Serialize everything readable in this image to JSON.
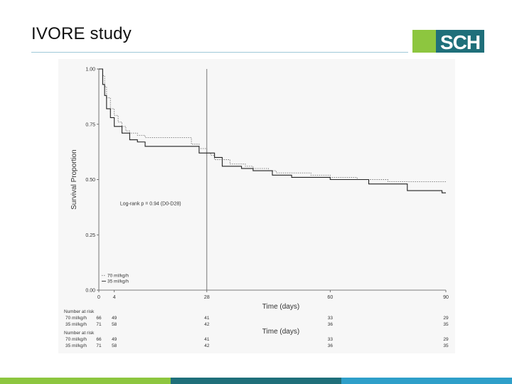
{
  "slide": {
    "title": "IVORE study",
    "logo_text": "SCH",
    "colors": {
      "green": "#8dc63f",
      "teal": "#1f6f7a",
      "blue": "#2e9fc9"
    }
  },
  "chart_data": {
    "type": "line",
    "subtype": "kaplan-meier",
    "xlabel": "Time (days)",
    "ylabel": "Survival Proportion",
    "xlim": [
      0,
      90
    ],
    "ylim": [
      0,
      1
    ],
    "x_ticks": [
      "0",
      "4",
      "28",
      "60",
      "90"
    ],
    "y_ticks": [
      "0.00",
      "0.25",
      "0.50",
      "0.75",
      "1.00"
    ],
    "reference_line_x": 28,
    "annotation": "Log-rank p = 0.94 (D0-D28)",
    "legend": [
      "70 ml/kg/h",
      "35 ml/kg/h"
    ],
    "series": [
      {
        "name": "70 ml/kg/h",
        "style": "dotted",
        "x": [
          0,
          1,
          1.5,
          2,
          3,
          4,
          5,
          6,
          7,
          8,
          10,
          12,
          17,
          24,
          26,
          28,
          29,
          30,
          34,
          38,
          40,
          44,
          46,
          50,
          55,
          60,
          63,
          67,
          70,
          75,
          80,
          90
        ],
        "y": [
          1.0,
          0.97,
          0.92,
          0.87,
          0.82,
          0.79,
          0.76,
          0.74,
          0.72,
          0.71,
          0.7,
          0.69,
          0.69,
          0.66,
          0.64,
          0.62,
          0.61,
          0.59,
          0.57,
          0.56,
          0.55,
          0.54,
          0.53,
          0.53,
          0.52,
          0.51,
          0.51,
          0.5,
          0.5,
          0.49,
          0.49,
          0.49
        ]
      },
      {
        "name": "35 ml/kg/h",
        "style": "solid",
        "x": [
          0,
          1,
          1.5,
          2,
          3,
          4,
          6,
          8,
          10,
          12,
          20,
          26,
          28,
          30,
          32,
          37,
          40,
          45,
          50,
          55,
          60,
          63,
          70,
          80,
          89,
          90
        ],
        "y": [
          1.0,
          0.93,
          0.88,
          0.82,
          0.78,
          0.74,
          0.71,
          0.68,
          0.67,
          0.65,
          0.65,
          0.62,
          0.62,
          0.6,
          0.56,
          0.55,
          0.54,
          0.52,
          0.51,
          0.51,
          0.5,
          0.5,
          0.48,
          0.45,
          0.44,
          0.44
        ]
      }
    ],
    "risk_table": {
      "header": "Number at risk",
      "times": [
        "0",
        "4",
        "28",
        "60",
        "90"
      ],
      "rows": [
        {
          "label": "70 ml/kg/h",
          "values": [
            "66",
            "49",
            "41",
            "33",
            "29"
          ]
        },
        {
          "label": "35 ml/kg/h",
          "values": [
            "71",
            "58",
            "42",
            "36",
            "35"
          ]
        }
      ]
    }
  }
}
